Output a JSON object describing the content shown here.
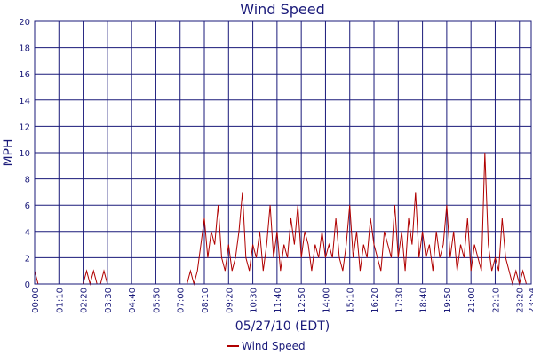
{
  "chart_data": {
    "type": "line",
    "title": "Wind Speed",
    "xlabel": "05/27/10 (EDT)",
    "ylabel": "MPH",
    "ylim": [
      0,
      20
    ],
    "yticks": [
      0,
      2,
      4,
      6,
      8,
      10,
      12,
      14,
      16,
      18,
      20
    ],
    "xlim_minutes": [
      0,
      1434
    ],
    "xticks": [
      "00:00",
      "01:10",
      "02:20",
      "03:30",
      "04:40",
      "05:50",
      "07:00",
      "08:10",
      "09:20",
      "10:30",
      "11:40",
      "12:50",
      "14:00",
      "15:10",
      "16:20",
      "17:30",
      "18:40",
      "19:50",
      "21:00",
      "22:10",
      "23:20",
      "23:54"
    ],
    "legend": {
      "position": "bottom-center",
      "entries": [
        "Wind Speed"
      ]
    },
    "grid": true,
    "series": [
      {
        "name": "Wind Speed",
        "color": "#b00000",
        "x_minutes": [
          0,
          10,
          20,
          30,
          40,
          50,
          60,
          70,
          80,
          90,
          100,
          110,
          120,
          130,
          140,
          150,
          160,
          170,
          180,
          190,
          200,
          210,
          220,
          230,
          240,
          250,
          260,
          270,
          280,
          290,
          300,
          310,
          320,
          330,
          340,
          350,
          360,
          370,
          380,
          390,
          400,
          410,
          420,
          430,
          440,
          450,
          460,
          470,
          480,
          490,
          500,
          510,
          520,
          530,
          540,
          550,
          560,
          570,
          580,
          590,
          600,
          610,
          620,
          630,
          640,
          650,
          660,
          670,
          680,
          690,
          700,
          710,
          720,
          730,
          740,
          750,
          760,
          770,
          780,
          790,
          800,
          810,
          820,
          830,
          840,
          850,
          860,
          870,
          880,
          890,
          900,
          910,
          920,
          930,
          940,
          950,
          960,
          970,
          980,
          990,
          1000,
          1010,
          1020,
          1030,
          1040,
          1050,
          1060,
          1070,
          1080,
          1090,
          1100,
          1110,
          1120,
          1130,
          1140,
          1150,
          1160,
          1170,
          1180,
          1190,
          1200,
          1210,
          1220,
          1230,
          1240,
          1250,
          1260,
          1270,
          1280,
          1290,
          1300,
          1310,
          1320,
          1330,
          1340,
          1350,
          1360,
          1370,
          1380,
          1390,
          1400,
          1410,
          1420,
          1430
        ],
        "values": [
          1,
          0,
          0,
          0,
          0,
          0,
          0,
          0,
          0,
          0,
          0,
          0,
          0,
          0,
          0,
          1,
          0,
          1,
          0,
          0,
          1,
          0,
          0,
          0,
          0,
          0,
          0,
          0,
          0,
          0,
          0,
          0,
          0,
          0,
          0,
          0,
          0,
          0,
          0,
          0,
          0,
          0,
          0,
          0,
          0,
          1,
          0,
          1,
          3,
          5,
          2,
          4,
          3,
          6,
          2,
          1,
          3,
          1,
          2,
          4,
          7,
          2,
          1,
          3,
          2,
          4,
          1,
          3,
          6,
          2,
          4,
          1,
          3,
          2,
          5,
          3,
          6,
          2,
          4,
          3,
          1,
          3,
          2,
          4,
          2,
          3,
          2,
          5,
          2,
          1,
          3,
          6,
          2,
          4,
          1,
          3,
          2,
          5,
          3,
          2,
          1,
          4,
          3,
          2,
          6,
          2,
          4,
          1,
          5,
          3,
          7,
          2,
          4,
          2,
          3,
          1,
          4,
          2,
          3,
          6,
          2,
          4,
          1,
          3,
          2,
          5,
          1,
          3,
          2,
          1,
          10,
          3,
          1,
          2,
          1,
          5,
          2,
          1,
          0,
          1,
          0,
          1,
          0,
          0
        ]
      }
    ]
  }
}
